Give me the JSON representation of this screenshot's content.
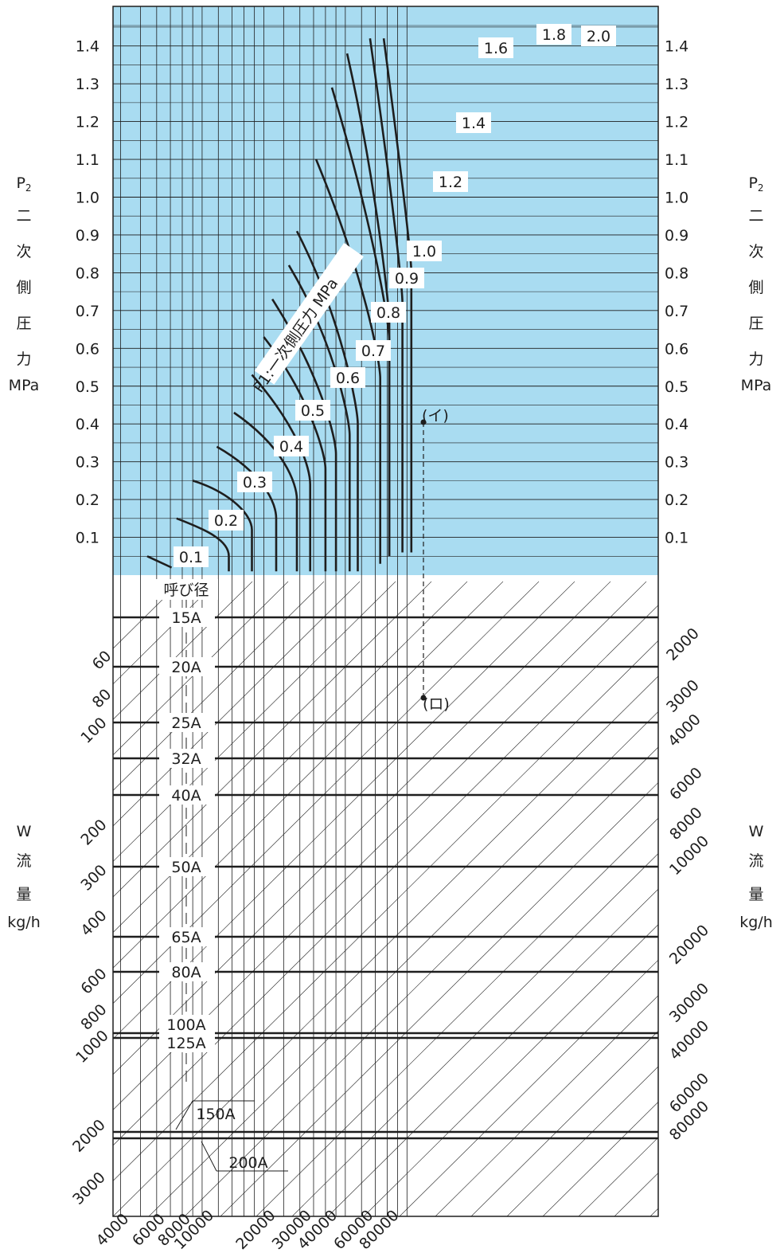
{
  "chart_data": {
    "type": "line",
    "upper_panel": {
      "ylabel_symbol": "P",
      "ylabel_sub": "2",
      "ylabel_chars": [
        "二",
        "次",
        "側",
        "圧",
        "力"
      ],
      "ylabel_unit": "MPa",
      "y_ticks": [
        "0.1",
        "0.2",
        "0.3",
        "0.4",
        "0.5",
        "0.6",
        "0.7",
        "0.8",
        "0.9",
        "1.0",
        "1.1",
        "1.2",
        "1.3",
        "1.4"
      ],
      "ylim": [
        0,
        1.45
      ],
      "series_label": "P1:一次側圧力 MPa",
      "series": [
        {
          "name": "0.1",
          "x": [
            5400,
            7100
          ],
          "y": [
            0.05,
            0.02
          ]
        },
        {
          "name": "0.2",
          "x": [
            7500,
            10500,
            13500,
            13500
          ],
          "y": [
            0.15,
            0.12,
            0.05,
            0.01
          ]
        },
        {
          "name": "0.3",
          "x": [
            9000,
            13500,
            17500,
            17500
          ],
          "y": [
            0.25,
            0.22,
            0.12,
            0.01
          ]
        },
        {
          "name": "0.4",
          "x": [
            11800,
            19800,
            23000,
            23000
          ],
          "y": [
            0.34,
            0.27,
            0.15,
            0.01
          ]
        },
        {
          "name": "0.5",
          "x": [
            14300,
            25000,
            29000,
            29000
          ],
          "y": [
            0.43,
            0.34,
            0.2,
            0.01
          ]
        },
        {
          "name": "0.6",
          "x": [
            17500,
            29500,
            33700,
            33700
          ],
          "y": [
            0.53,
            0.39,
            0.24,
            0.01
          ]
        },
        {
          "name": "0.7",
          "x": [
            20000,
            33000,
            40000,
            40000
          ],
          "y": [
            0.63,
            0.48,
            0.28,
            0.01
          ]
        },
        {
          "name": "0.8",
          "x": [
            22000,
            38000,
            45000,
            45000
          ],
          "y": [
            0.73,
            0.53,
            0.32,
            0.01
          ]
        },
        {
          "name": "0.9",
          "x": [
            26500,
            44000,
            52500,
            52500
          ],
          "y": [
            0.82,
            0.62,
            0.37,
            0.01
          ]
        },
        {
          "name": "1.0",
          "x": [
            29000,
            48000,
            57500,
            57500
          ],
          "y": [
            0.91,
            0.68,
            0.4,
            0.01
          ]
        },
        {
          "name": "1.2",
          "x": [
            36000,
            63000,
            74000,
            74000
          ],
          "y": [
            1.1,
            0.78,
            0.52,
            0.03
          ]
        },
        {
          "name": "1.4",
          "x": [
            43000,
            70000,
            82000,
            82000
          ],
          "y": [
            1.29,
            0.9,
            0.62,
            0.05
          ]
        },
        {
          "name": "1.6",
          "x": [
            51000,
            70000,
            82000,
            82000
          ],
          "y": [
            1.38,
            1.05,
            0.67,
            0.05
          ]
        },
        {
          "name": "1.8",
          "x": [
            66000,
            84000,
            95000,
            95000
          ],
          "y": [
            1.42,
            1.02,
            0.72,
            0.06
          ]
        },
        {
          "name": "2.0",
          "x": [
            77000,
            92000,
            105000,
            105000
          ],
          "y": [
            1.42,
            1.1,
            0.8,
            0.06
          ]
        }
      ]
    },
    "lower_panel": {
      "ylabel_symbol": "W",
      "ylabel_chars": [
        "流",
        "量"
      ],
      "ylabel_unit": "kg/h",
      "nominal_diameter_title": "呼び径",
      "pipe_sizes": [
        "15A",
        "20A",
        "25A",
        "32A",
        "40A",
        "50A",
        "65A",
        "80A",
        "100A",
        "125A",
        "150A",
        "200A"
      ],
      "left_scale": [
        "60",
        "80",
        "100",
        "200",
        "300",
        "400",
        "600",
        "800",
        "1000",
        "2000",
        "3000"
      ],
      "bottom_scale": [
        "4000",
        "6000",
        "8000",
        "10000",
        "20000",
        "30000",
        "40000",
        "60000",
        "80000"
      ],
      "right_scale": [
        "2000",
        "3000",
        "4000",
        "6000",
        "8000",
        "10000",
        "20000",
        "30000",
        "40000",
        "60000",
        "80000"
      ]
    },
    "example": {
      "point_a": "(イ)",
      "point_b": "(ロ)"
    }
  }
}
